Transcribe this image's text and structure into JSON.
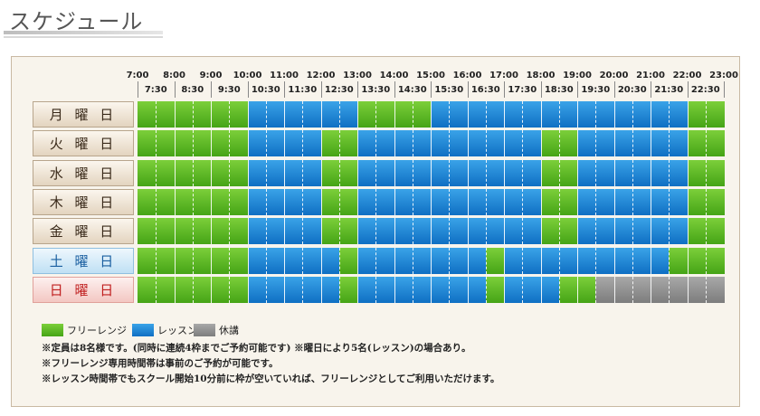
{
  "page": {
    "title": "スケジュール"
  },
  "header": {
    "hours": [
      "7:00",
      "8:00",
      "9:00",
      "10:00",
      "11:00",
      "12:00",
      "13:00",
      "14:00",
      "15:00",
      "16:00",
      "17:00",
      "18:00",
      "19:00",
      "20:00",
      "21:00",
      "22:00",
      "23:00"
    ],
    "halves": [
      "7:30",
      "8:30",
      "9:30",
      "10:30",
      "11:30",
      "12:30",
      "13:30",
      "14:30",
      "15:30",
      "16:30",
      "17:30",
      "18:30",
      "19:30",
      "20:30",
      "21:30",
      "22:30"
    ]
  },
  "colors": {
    "free": "#55b526",
    "lesson": "#1a82d4",
    "closed": "#8e8e8e"
  },
  "days": [
    {
      "label": "月 曜 日",
      "style": "weekday",
      "slots": [
        "F",
        "F",
        "F",
        "F",
        "F",
        "F",
        "L",
        "L",
        "L",
        "L",
        "L",
        "L",
        "F",
        "F",
        "F",
        "F",
        "L",
        "L",
        "L",
        "L",
        "L",
        "L",
        "L",
        "L",
        "L",
        "L",
        "L",
        "L",
        "L",
        "L",
        "F",
        "F"
      ]
    },
    {
      "label": "火 曜 日",
      "style": "weekday",
      "slots": [
        "F",
        "F",
        "F",
        "F",
        "F",
        "F",
        "L",
        "L",
        "L",
        "L",
        "F",
        "F",
        "L",
        "L",
        "L",
        "L",
        "L",
        "L",
        "L",
        "L",
        "L",
        "L",
        "F",
        "F",
        "L",
        "L",
        "L",
        "L",
        "L",
        "L",
        "F",
        "F"
      ]
    },
    {
      "label": "水 曜 日",
      "style": "weekday",
      "slots": [
        "F",
        "F",
        "F",
        "F",
        "F",
        "F",
        "L",
        "L",
        "L",
        "L",
        "F",
        "F",
        "L",
        "L",
        "L",
        "L",
        "L",
        "L",
        "L",
        "L",
        "L",
        "L",
        "F",
        "F",
        "L",
        "L",
        "L",
        "L",
        "L",
        "L",
        "F",
        "F"
      ]
    },
    {
      "label": "木 曜 日",
      "style": "weekday",
      "slots": [
        "F",
        "F",
        "F",
        "F",
        "F",
        "F",
        "L",
        "L",
        "L",
        "L",
        "F",
        "F",
        "L",
        "L",
        "L",
        "L",
        "L",
        "L",
        "L",
        "L",
        "L",
        "L",
        "F",
        "F",
        "L",
        "L",
        "L",
        "L",
        "L",
        "L",
        "F",
        "F"
      ]
    },
    {
      "label": "金 曜 日",
      "style": "weekday",
      "slots": [
        "F",
        "F",
        "F",
        "F",
        "F",
        "F",
        "L",
        "L",
        "L",
        "L",
        "F",
        "F",
        "L",
        "L",
        "L",
        "L",
        "L",
        "L",
        "L",
        "L",
        "L",
        "L",
        "F",
        "F",
        "L",
        "L",
        "L",
        "L",
        "L",
        "L",
        "F",
        "F"
      ]
    },
    {
      "label": "土 曜 日",
      "style": "sat",
      "slots": [
        "F",
        "F",
        "F",
        "F",
        "F",
        "F",
        "L",
        "L",
        "L",
        "L",
        "L",
        "F",
        "L",
        "L",
        "L",
        "L",
        "L",
        "L",
        "L",
        "F",
        "L",
        "L",
        "L",
        "L",
        "L",
        "L",
        "L",
        "L",
        "L",
        "F",
        "F",
        "F"
      ]
    },
    {
      "label": "日 曜 日",
      "style": "sun",
      "slots": [
        "F",
        "F",
        "F",
        "F",
        "F",
        "F",
        "L",
        "L",
        "L",
        "L",
        "L",
        "F",
        "L",
        "L",
        "L",
        "L",
        "L",
        "L",
        "L",
        "F",
        "L",
        "L",
        "L",
        "F",
        "F",
        "X",
        "X",
        "X",
        "X",
        "X",
        "X",
        "X"
      ]
    }
  ],
  "legend": [
    {
      "key": "F",
      "label": "フリーレンジ"
    },
    {
      "key": "L",
      "label": "レッスン"
    },
    {
      "key": "X",
      "label": "休講"
    }
  ],
  "notes": [
    "※定員は8名様です。(同時に連続4枠までご予約可能です) ※曜日により5名(レッスン)の場合あり。",
    "※フリーレンジ専用時間帯は事前のご予約が可能です。",
    "※レッスン時間帯でもスクール開始10分前に枠が空いていれば、フリーレンジとしてご利用いただけます。"
  ]
}
